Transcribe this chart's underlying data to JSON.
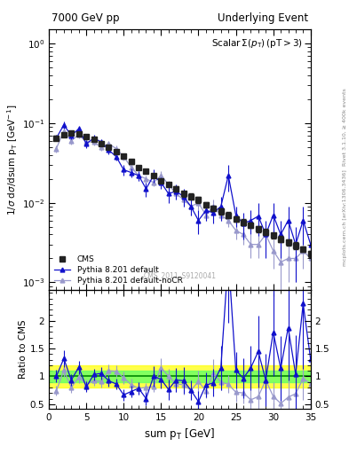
{
  "title_left": "7000 GeV pp",
  "title_right": "Underlying Event",
  "plot_title": "Scalar Σ(p_T) (pT > 3)",
  "xlabel": "sum p_T [GeV]",
  "ylabel_main": "1/σ dσ/dsum p_T [GeV⁻¹]",
  "ylabel_ratio": "Ratio to CMS",
  "right_label_top": "Rivet 3.1.10, ≥ 400k events",
  "right_label_bot": "mcplots.cern.ch [arXiv:1306.3436]",
  "watermark": "CMS_2011_S9120041",
  "cms_x": [
    1,
    2,
    3,
    4,
    5,
    6,
    7,
    8,
    9,
    10,
    11,
    12,
    13,
    14,
    15,
    16,
    17,
    18,
    19,
    20,
    21,
    22,
    23,
    24,
    25,
    26,
    27,
    28,
    29,
    30,
    31,
    32,
    33,
    34,
    35
  ],
  "cms_y": [
    0.065,
    0.072,
    0.075,
    0.073,
    0.068,
    0.063,
    0.055,
    0.05,
    0.044,
    0.039,
    0.033,
    0.028,
    0.025,
    0.022,
    0.019,
    0.017,
    0.015,
    0.013,
    0.012,
    0.011,
    0.0095,
    0.0085,
    0.0078,
    0.007,
    0.0063,
    0.0057,
    0.0052,
    0.0047,
    0.0043,
    0.0039,
    0.0035,
    0.0032,
    0.0029,
    0.0026,
    0.0023
  ],
  "cms_yerr": [
    0.004,
    0.004,
    0.004,
    0.003,
    0.003,
    0.003,
    0.003,
    0.002,
    0.002,
    0.002,
    0.002,
    0.001,
    0.001,
    0.001,
    0.001,
    0.001,
    0.001,
    0.001,
    0.001,
    0.001,
    0.0008,
    0.0007,
    0.0006,
    0.0006,
    0.0005,
    0.0005,
    0.0004,
    0.0004,
    0.0004,
    0.0003,
    0.0003,
    0.0003,
    0.0003,
    0.0002,
    0.0002
  ],
  "py_x": [
    1,
    2,
    3,
    4,
    5,
    6,
    7,
    8,
    9,
    10,
    11,
    12,
    13,
    14,
    15,
    16,
    17,
    18,
    19,
    20,
    21,
    22,
    23,
    24,
    25,
    26,
    27,
    28,
    29,
    30,
    31,
    32,
    33,
    34,
    35
  ],
  "py_y": [
    0.065,
    0.095,
    0.07,
    0.085,
    0.055,
    0.065,
    0.058,
    0.046,
    0.038,
    0.026,
    0.024,
    0.022,
    0.015,
    0.022,
    0.018,
    0.013,
    0.014,
    0.012,
    0.009,
    0.006,
    0.008,
    0.0075,
    0.009,
    0.022,
    0.007,
    0.0055,
    0.006,
    0.0068,
    0.004,
    0.007,
    0.004,
    0.006,
    0.003,
    0.006,
    0.003
  ],
  "py_yerr": [
    0.006,
    0.01,
    0.007,
    0.008,
    0.006,
    0.006,
    0.005,
    0.005,
    0.004,
    0.004,
    0.003,
    0.003,
    0.003,
    0.004,
    0.003,
    0.003,
    0.003,
    0.003,
    0.002,
    0.002,
    0.002,
    0.002,
    0.003,
    0.008,
    0.002,
    0.002,
    0.002,
    0.003,
    0.002,
    0.003,
    0.002,
    0.003,
    0.002,
    0.003,
    0.002
  ],
  "nocr_x": [
    1,
    2,
    3,
    4,
    5,
    6,
    7,
    8,
    9,
    10,
    11,
    12,
    13,
    14,
    15,
    16,
    17,
    18,
    19,
    20,
    21,
    22,
    23,
    24,
    25,
    26,
    27,
    28,
    29,
    30,
    31,
    32,
    33,
    34,
    35
  ],
  "nocr_y": [
    0.048,
    0.08,
    0.06,
    0.072,
    0.058,
    0.058,
    0.05,
    0.055,
    0.048,
    0.038,
    0.028,
    0.022,
    0.02,
    0.018,
    0.022,
    0.017,
    0.013,
    0.011,
    0.009,
    0.01,
    0.007,
    0.009,
    0.007,
    0.006,
    0.0045,
    0.004,
    0.003,
    0.003,
    0.004,
    0.0025,
    0.0018,
    0.002,
    0.002,
    0.0025,
    0.002
  ],
  "nocr_yerr": [
    0.005,
    0.008,
    0.006,
    0.007,
    0.006,
    0.005,
    0.005,
    0.005,
    0.004,
    0.004,
    0.003,
    0.003,
    0.002,
    0.002,
    0.003,
    0.002,
    0.002,
    0.002,
    0.002,
    0.002,
    0.001,
    0.002,
    0.001,
    0.001,
    0.001,
    0.001,
    0.001,
    0.001,
    0.001,
    0.001,
    0.001,
    0.001,
    0.001,
    0.001,
    0.001
  ],
  "cms_color": "#222222",
  "py_color": "#1111cc",
  "nocr_color": "#9999cc",
  "xlim": [
    0,
    35
  ],
  "ylim_main": [
    0.0008,
    1.5
  ],
  "ylim_ratio": [
    0.42,
    2.55
  ],
  "ratio_yticks": [
    0.5,
    1.0,
    1.5,
    2.0
  ],
  "ratio_yticklabels": [
    "0.5",
    "1",
    "1.5",
    "2"
  ]
}
